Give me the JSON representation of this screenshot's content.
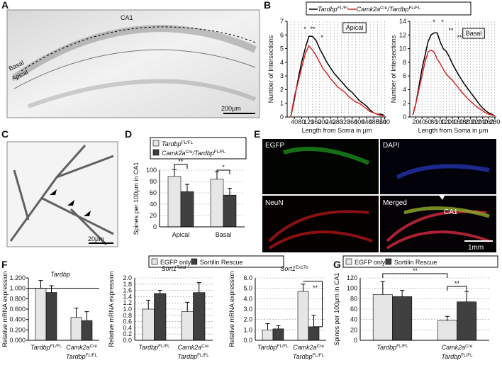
{
  "figure_labels": [
    "A",
    "B",
    "C",
    "D",
    "E",
    "F",
    "G"
  ],
  "images": {
    "A": {
      "labels": [
        "CA1",
        "Basal",
        "Apical"
      ],
      "scale_bar": "200μm"
    },
    "C": {
      "scale_bar": "20μm"
    },
    "E": {
      "panels": [
        "EGFP",
        "DAPI",
        "NeuN",
        "Merged"
      ],
      "region": "CA1",
      "scale_bar": "1mm"
    }
  },
  "chart_data": [
    {
      "type": "line",
      "inset_label": "Apical",
      "ylabel": "Number of Intersections",
      "xlabel": "Length from Soma in μm",
      "x": [
        20,
        40,
        60,
        80,
        100,
        120,
        140,
        160,
        180,
        200,
        220,
        240,
        260,
        280,
        300,
        320,
        340,
        360,
        380,
        400,
        420,
        440,
        460,
        480,
        500,
        520,
        540
      ],
      "series": [
        {
          "name": [
            {
              "text": "Tardbp",
              "sup": "FL/FL"
            }
          ],
          "color": "#000000",
          "values": [
            0,
            1.3,
            2.7,
            4,
            5,
            5.9,
            5.9,
            5.6,
            5,
            4.5,
            4,
            3.6,
            3.2,
            2.9,
            2.6,
            2.3,
            2,
            1.8,
            1.5,
            1.2,
            1,
            0.8,
            0.5,
            0.3,
            0.2,
            0.2,
            0.1
          ]
        },
        {
          "name": [
            {
              "text": "Camk2a",
              "sup": "Cre"
            },
            {
              "text": "/Tardbp",
              "sup": "FL/FL"
            }
          ],
          "color": "#d62728",
          "values": [
            0,
            1.5,
            2.5,
            3.6,
            4.6,
            5.2,
            4.9,
            4.5,
            4,
            3.5,
            3.2,
            2.8,
            2.5,
            2.2,
            2,
            1.8,
            1.5,
            1.3,
            1.1,
            1,
            0.8,
            0.6,
            0.4,
            0.3,
            0.2,
            0.1,
            0.1
          ]
        }
      ],
      "xlim": [
        0,
        550
      ],
      "xticks": [
        40,
        80,
        120,
        160,
        200,
        240,
        280,
        320,
        360,
        400,
        440,
        480,
        520,
        540
      ],
      "ylim": [
        0,
        7
      ],
      "yticks": [
        0,
        1,
        2,
        3,
        4,
        5,
        6,
        7
      ],
      "grid": true,
      "annotations": [
        "*",
        "**",
        "*"
      ]
    },
    {
      "type": "line",
      "inset_label": "Basal",
      "ylabel": "Number of Intersections",
      "xlabel": "Length from Soma in μm",
      "x": [
        10,
        20,
        30,
        40,
        50,
        60,
        70,
        80,
        90,
        100,
        110,
        120,
        130,
        140,
        150,
        160,
        170,
        180,
        190,
        200,
        210,
        220,
        230,
        240,
        250,
        260,
        270,
        280
      ],
      "series": [
        {
          "color": "#000000",
          "values": [
            0.3,
            2,
            4.5,
            7,
            9,
            11,
            12,
            12.3,
            12.3,
            11,
            10,
            9.6,
            8.8,
            7.8,
            7,
            6.2,
            5.5,
            4.8,
            4.2,
            3.6,
            3,
            2.4,
            1.8,
            1.3,
            0.9,
            0.6,
            0.4,
            0.2
          ]
        },
        {
          "color": "#d62728",
          "values": [
            0.3,
            2,
            4,
            6,
            8,
            9.5,
            9.8,
            9.5,
            8.5,
            7.8,
            7,
            6.3,
            5.8,
            5.4,
            4.8,
            4.3,
            3.7,
            3.2,
            2.7,
            2.3,
            1.9,
            1.5,
            1.2,
            0.9,
            0.6,
            0.4,
            0.3,
            0.2
          ]
        }
      ],
      "xlim": [
        0,
        285
      ],
      "xticks": [
        20,
        40,
        60,
        80,
        100,
        120,
        140,
        160,
        180,
        200,
        220,
        240,
        260,
        280
      ],
      "ylim": [
        0,
        14
      ],
      "yticks": [
        0,
        2,
        4,
        6,
        8,
        10,
        12,
        14
      ],
      "grid": true,
      "annotations": [
        "*",
        "*",
        "**",
        "**"
      ]
    },
    {
      "type": "bar",
      "ylabel": "Spines per 100μm in CA1",
      "categories": [
        "Apical",
        "Basal"
      ],
      "series": [
        {
          "name": [
            {
              "text": "Tardbp",
              "sup": "FL/FL"
            }
          ],
          "color": "#e6e6e6",
          "values": [
            89,
            84
          ],
          "errors": [
            12,
            13
          ]
        },
        {
          "name": [
            {
              "text": "Camk2a",
              "sup": "Cre"
            },
            {
              "text": "/Tardbp",
              "sup": "FL/FL"
            }
          ],
          "color": "#404040",
          "values": [
            62,
            56
          ],
          "errors": [
            13,
            12
          ]
        }
      ],
      "ylim": [
        0,
        100
      ],
      "yticks": [
        0,
        20,
        40,
        60,
        80,
        100
      ],
      "grid": true,
      "annotations": [
        "**",
        "*"
      ]
    },
    {
      "type": "bar",
      "title": [
        {
          "text": "Tardbp"
        }
      ],
      "ylabel": "Relative mRNA expression",
      "categories": [
        [
          {
            "text": "Tardbp",
            "sup": "FL/FL"
          }
        ],
        [
          {
            "text": "Camk2a",
            "sup": "Cre"
          },
          {
            "text": "Tardbp",
            "sup": "FL/FL"
          }
        ]
      ],
      "series": [
        {
          "name": "EGFP only",
          "color": "#e6e6e6",
          "values": [
            1.0,
            0.44
          ],
          "errors": [
            0.15,
            0.18
          ]
        },
        {
          "name": "Sortilin Rescue",
          "color": "#404040",
          "values": [
            0.92,
            0.38
          ],
          "errors": [
            0.13,
            0.17
          ]
        }
      ],
      "hline": 1.0,
      "ylim": [
        0,
        1.2
      ],
      "yticks": [
        {
          "value": 0,
          "label": "0.000"
        },
        {
          "value": 0.2,
          "label": "0.200"
        },
        {
          "value": 0.4,
          "label": "0.400"
        },
        {
          "value": 0.6,
          "label": "0.600"
        },
        {
          "value": 0.8,
          "label": "0.800"
        },
        {
          "value": 1.0,
          "label": "1.000"
        },
        {
          "value": 1.2,
          "label": "1.200"
        }
      ],
      "grid": false
    },
    {
      "type": "bar",
      "title": [
        {
          "text": "Sort1",
          "sup": "Total"
        }
      ],
      "ylabel": "Relative mRNA expression",
      "categories": [
        [
          {
            "text": "Tardbp",
            "sup": "FL/FL"
          }
        ],
        [
          {
            "text": "Camk2a",
            "sup": "Cre"
          },
          {
            "text": "Tardbp",
            "sup": "FL/FL"
          }
        ]
      ],
      "series": [
        {
          "color": "#e6e6e6",
          "values": [
            1.0,
            0.92
          ],
          "errors": [
            0.28,
            0.3
          ]
        },
        {
          "color": "#404040",
          "values": [
            1.5,
            1.53
          ],
          "errors": [
            0.1,
            0.32
          ]
        }
      ],
      "ylim": [
        0,
        2.0
      ],
      "yticks": [
        {
          "value": 0,
          "label": "0.0"
        },
        {
          "value": 0.2,
          "label": "0.2"
        },
        {
          "value": 0.4,
          "label": "0.4"
        },
        {
          "value": 0.6,
          "label": "0.6"
        },
        {
          "value": 0.8,
          "label": "0.8"
        },
        {
          "value": 1.0,
          "label": "1.0"
        },
        {
          "value": 1.2,
          "label": "1.2"
        },
        {
          "value": 1.4,
          "label": "1.4"
        },
        {
          "value": 1.6,
          "label": "1.6"
        },
        {
          "value": 1.8,
          "label": "1.8"
        },
        {
          "value": 2.0,
          "label": "2.0"
        }
      ],
      "grid": true
    },
    {
      "type": "bar",
      "title": [
        {
          "text": "Sort1",
          "sup": "Ex17b"
        }
      ],
      "ylabel": "Relative mRNA expression",
      "categories": [
        [
          {
            "text": "Tardbp",
            "sup": "FL/FL"
          }
        ],
        [
          {
            "text": "Camk2a",
            "sup": "Cre"
          },
          {
            "text": "Tardbp",
            "sup": "FL/FL"
          }
        ]
      ],
      "series": [
        {
          "color": "#e6e6e6",
          "values": [
            1.0,
            4.7
          ],
          "errors": [
            0.6,
            0.7
          ]
        },
        {
          "color": "#404040",
          "values": [
            1.1,
            1.3
          ],
          "errors": [
            0.3,
            1.1
          ]
        }
      ],
      "ylim": [
        0,
        6.0
      ],
      "yticks": [
        {
          "value": 0,
          "label": "0.0"
        },
        {
          "value": 1,
          "label": "1.0"
        },
        {
          "value": 2,
          "label": "2.0"
        },
        {
          "value": 3,
          "label": "3.0"
        },
        {
          "value": 4,
          "label": "4.0"
        },
        {
          "value": 5,
          "label": "5.0"
        },
        {
          "value": 6,
          "label": "6.0"
        }
      ],
      "grid": true,
      "annotations": [
        "**"
      ]
    },
    {
      "type": "bar",
      "ylabel": "Spines per 100μm in CA1",
      "categories": [
        [
          {
            "text": "Tardbp",
            "sup": "FL/FL"
          }
        ],
        [
          {
            "text": "Camk2a",
            "sup": "Cre"
          },
          {
            "text": "Tardbp",
            "sup": "FL/FL"
          }
        ]
      ],
      "series": [
        {
          "name": "EGFP only",
          "color": "#e6e6e6",
          "values": [
            88,
            38
          ],
          "errors": [
            25,
            8
          ]
        },
        {
          "name": "Sortilin Rescue",
          "color": "#404040",
          "values": [
            84,
            74
          ],
          "errors": [
            12,
            20
          ]
        }
      ],
      "ylim": [
        0,
        120
      ],
      "yticks": [
        0,
        20,
        40,
        60,
        80,
        100,
        120
      ],
      "grid": true,
      "annotations": [
        "**",
        "**"
      ]
    }
  ]
}
